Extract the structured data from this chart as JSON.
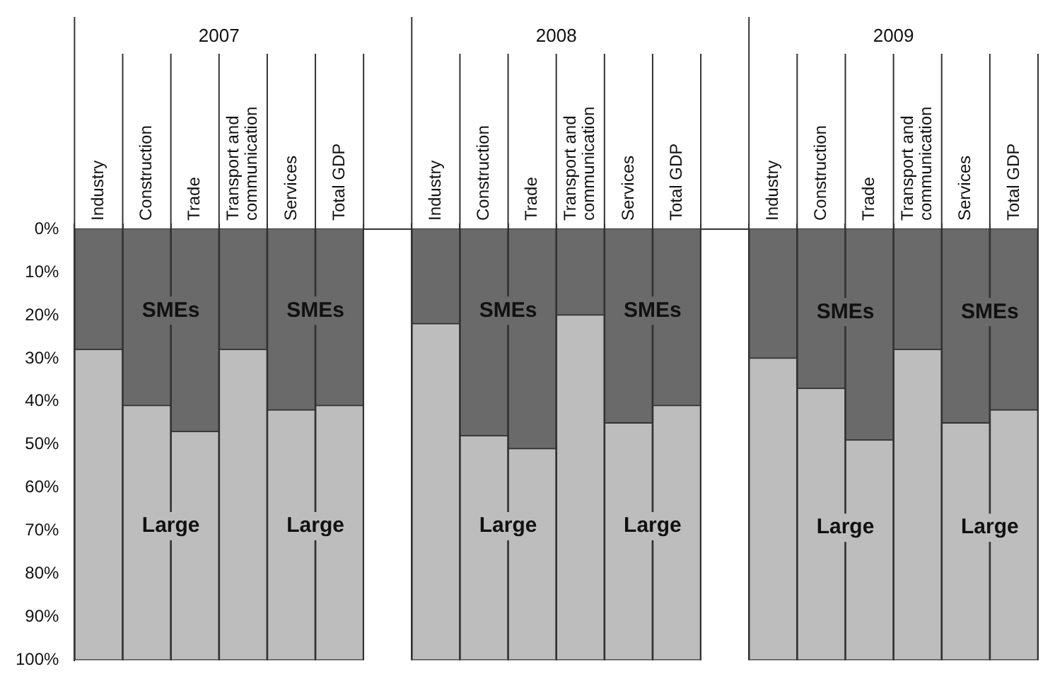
{
  "chart_data": {
    "type": "bar",
    "stacked": true,
    "categories": [
      "Industry",
      "Construction",
      "Trade",
      "Transport and communication",
      "Services",
      "Total GDP",
      null,
      "Industry",
      "Construction",
      "Trade",
      "Transport and communication",
      "Services",
      "Total GDP",
      null,
      "Industry",
      "Construction",
      "Trade",
      "Transport and communication",
      "Services",
      "Total GDP"
    ],
    "series": [
      {
        "name": "SMEs",
        "color": "#6a6a6a",
        "values": [
          28,
          41,
          47,
          28,
          42,
          41,
          null,
          22,
          48,
          51,
          20,
          45,
          41,
          null,
          30,
          37,
          49,
          28,
          45,
          42
        ]
      },
      {
        "name": "Large",
        "color": "#bdbdbd",
        "values": [
          72,
          59,
          53,
          72,
          58,
          59,
          null,
          78,
          52,
          49,
          80,
          55,
          59,
          null,
          70,
          63,
          51,
          72,
          55,
          58
        ]
      }
    ],
    "ylim": [
      100,
      0
    ],
    "yticks": [
      {
        "value": 0,
        "label": "0%"
      },
      {
        "value": 10,
        "label": "10%"
      },
      {
        "value": 20,
        "label": "20%"
      },
      {
        "value": 30,
        "label": "30%"
      },
      {
        "value": 40,
        "label": "40%"
      },
      {
        "value": 50,
        "label": "50%"
      },
      {
        "value": 60,
        "label": "60%"
      },
      {
        "value": 70,
        "label": "70%"
      },
      {
        "value": 80,
        "label": "80%"
      },
      {
        "value": 90,
        "label": "90%"
      },
      {
        "value": 100,
        "label": "100%"
      }
    ],
    "annotations": [
      "2007",
      "2008",
      "2009"
    ],
    "grid": "x",
    "legend": false
  }
}
